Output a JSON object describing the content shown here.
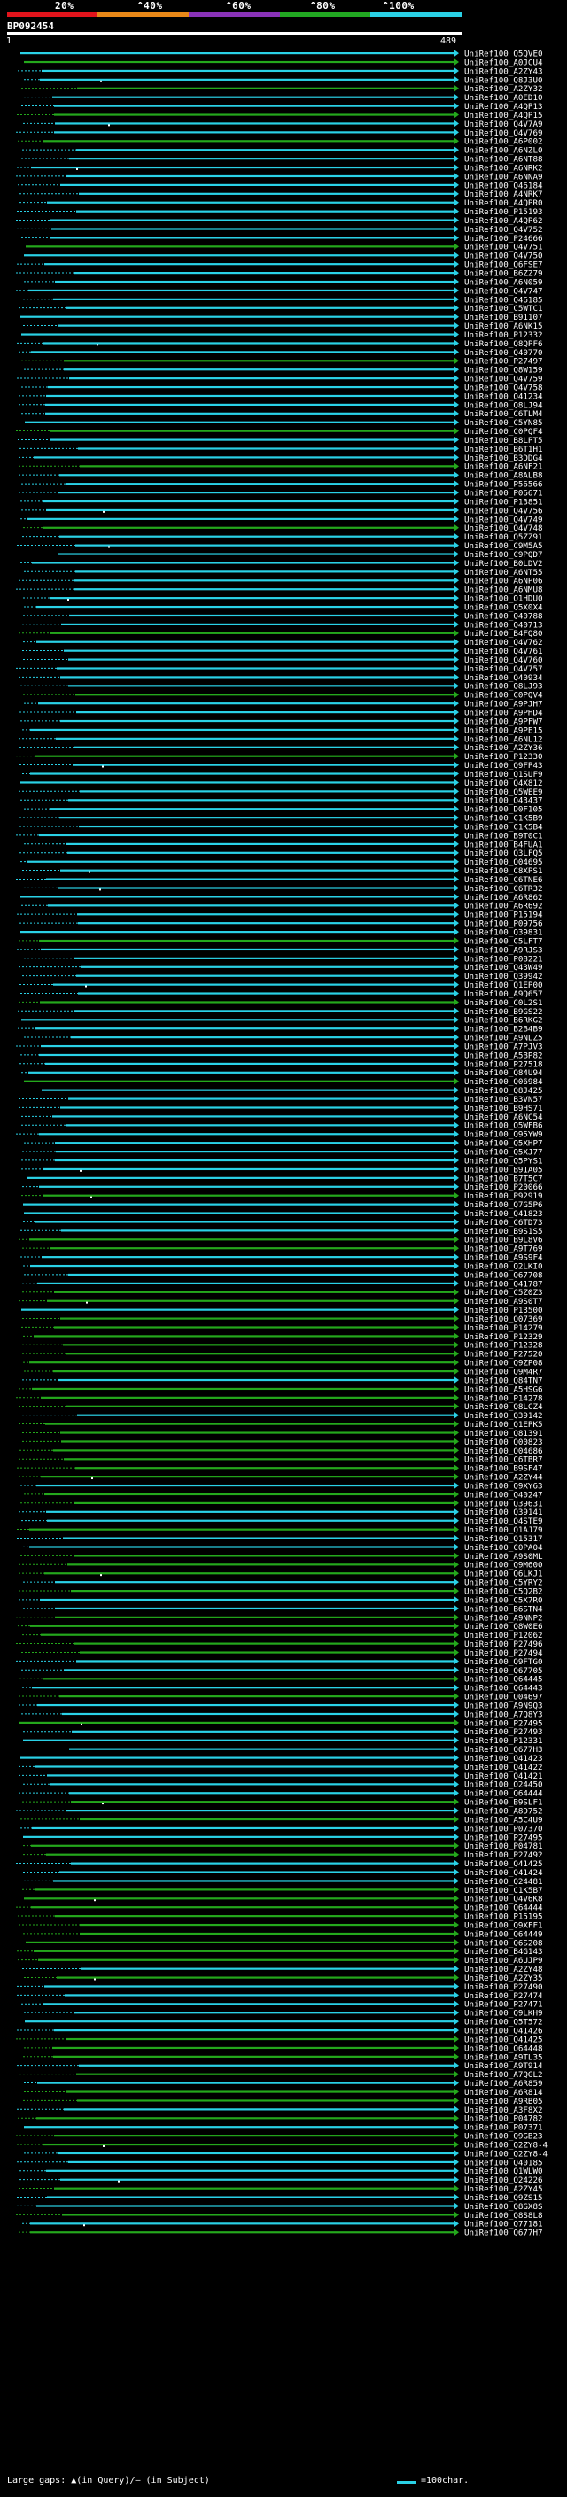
{
  "scale": {
    "labels": [
      "20%",
      "^40%",
      "^60%",
      "^80%",
      "^100%"
    ],
    "colors": [
      "#e2141c",
      "#e88818",
      "#8a33b8",
      "#22a822",
      "#2ad1e6"
    ]
  },
  "query": {
    "id": "BP092454",
    "start": "1",
    "end": "489"
  },
  "footer": {
    "gaps": "Large gaps: ▲(in Query)/– (in Subject)",
    "key": "=100char."
  },
  "colors": {
    "cyan": "#2ad1e6",
    "green": "#24a81c",
    "lime": "#7bd316",
    "white": "#ffffff"
  },
  "hits": [
    "UniRef100_Q5QVE0",
    "UniRef100_A0JCU4",
    "UniRef100_A2ZY43",
    "UniRef100_Q8J3U0",
    "UniRef100_A2ZY32",
    "UniRef100_A0ED10",
    "UniRef100_A4QP13",
    "UniRef100_A4QP15",
    "UniRef100_Q4V7A9",
    "UniRef100_Q4V769",
    "UniRef100_A6P002",
    "UniRef100_A6NZL0",
    "UniRef100_A6NT88",
    "UniRef100_A6NRK2",
    "UniRef100_A6NNA9",
    "UniRef100_Q46184",
    "UniRef100_A4NRK7",
    "UniRef100_A4QPR0",
    "UniRef100_P15193",
    "UniRef100_A4QP62",
    "UniRef100_Q4V752",
    "UniRef100_P24666",
    "UniRef100_Q4V751",
    "UniRef100_Q4V750",
    "UniRef100_Q6FSE7",
    "UniRef100_B6ZZ79",
    "UniRef100_A6N059",
    "UniRef100_Q4V747",
    "UniRef100_Q46185",
    "UniRef100_C5WTC1",
    "UniRef100_B91107",
    "UniRef100_A6NK15",
    "UniRef100_P12332",
    "UniRef100_Q8QPF6",
    "UniRef100_Q40770",
    "UniRef100_P27497",
    "UniRef100_Q8W159",
    "UniRef100_Q4V759",
    "UniRef100_Q4V758",
    "UniRef100_Q41234",
    "UniRef100_Q8LJ94",
    "UniRef100_C6TLM4",
    "UniRef100_C5YN85",
    "UniRef100_C0PQF4",
    "UniRef100_B8LPT5",
    "UniRef100_B6T1H1",
    "UniRef100_B3DDG4",
    "UniRef100_A6NF21",
    "UniRef100_A8ALB8",
    "UniRef100_P56566",
    "UniRef100_P06671",
    "UniRef100_P13851",
    "UniRef100_Q4V756",
    "UniRef100_Q4V749",
    "UniRef100_Q4V748",
    "UniRef100_Q5ZZ91",
    "UniRef100_C9M5A5",
    "UniRef100_C9PQD7",
    "UniRef100_B0LDV2",
    "UniRef100_A6NT55",
    "UniRef100_A6NP06",
    "UniRef100_A6NMU8",
    "UniRef100_Q1HDU0",
    "UniRef100_Q5X0X4",
    "UniRef100_Q40788",
    "UniRef100_Q40713",
    "UniRef100_B4FQ80",
    "UniRef100_Q4V762",
    "UniRef100_Q4V761",
    "UniRef100_Q4V760",
    "UniRef100_Q4V757",
    "UniRef100_Q40934",
    "UniRef100_Q8LJ93",
    "UniRef100_C0PQV4",
    "UniRef100_A9PJH7",
    "UniRef100_A9PHD4",
    "UniRef100_A9PFW7",
    "UniRef100_A9PE15",
    "UniRef100_A6NL12",
    "UniRef100_A2ZY36",
    "UniRef100_P12330",
    "UniRef100_Q9FP43",
    "UniRef100_Q1SUF9",
    "UniRef100_Q4X812",
    "UniRef100_Q5WEE9",
    "UniRef100_Q43437",
    "UniRef100_D0F105",
    "UniRef100_C1K5B9",
    "UniRef100_C1K5B4",
    "UniRef100_B9T0C1",
    "UniRef100_B4FUA1",
    "UniRef100_Q3LFQ5",
    "UniRef100_Q04695",
    "UniRef100_C8XPS1",
    "UniRef100_C6TNE6",
    "UniRef100_C6TR32",
    "UniRef100_A6R862",
    "UniRef100_A6R692",
    "UniRef100_P15194",
    "UniRef100_P09756",
    "UniRef100_Q39831",
    "UniRef100_C5LFT7",
    "UniRef100_A9RJS3",
    "UniRef100_P08221",
    "UniRef100_Q43W49",
    "UniRef100_Q39942",
    "UniRef100_Q1EP00",
    "UniRef100_A9Q657",
    "UniRef100_C0L2S1",
    "UniRef100_B9GS22",
    "UniRef100_B6RKG2",
    "UniRef100_B2B4B9",
    "UniRef100_A9NLZ5",
    "UniRef100_A7PJV3",
    "UniRef100_A5BP82",
    "UniRef100_P27518",
    "UniRef100_Q84U94",
    "UniRef100_Q06984",
    "UniRef100_Q8J425",
    "UniRef100_B3VN57",
    "UniRef100_B9HS71",
    "UniRef100_A6NC54",
    "UniRef100_Q5WFB6",
    "UniRef100_Q95YW9",
    "UniRef100_Q5XHP7",
    "UniRef100_Q5XJ77",
    "UniRef100_Q5PYS1",
    "UniRef100_B91A05",
    "UniRef100_B7T5C7",
    "UniRef100_P20066",
    "UniRef100_P92919",
    "UniRef100_Q7G5P6",
    "UniRef100_Q41823",
    "UniRef100_C6TD73",
    "UniRef100_B9S1S5",
    "UniRef100_B9L8V6",
    "UniRef100_A9T769",
    "UniRef100_A9S9F4",
    "UniRef100_Q2LKI0",
    "UniRef100_Q67708",
    "UniRef100_Q41787",
    "UniRef100_C5Z0Z3",
    "UniRef100_A9S0T7",
    "UniRef100_P13500",
    "UniRef100_Q07369",
    "UniRef100_P14279",
    "UniRef100_P12329",
    "UniRef100_P12328",
    "UniRef100_P27520",
    "UniRef100_Q9ZP08",
    "UniRef100_Q9M4R7",
    "UniRef100_Q84TN7",
    "UniRef100_A5HSG6",
    "UniRef100_P14278",
    "UniRef100_Q8LCZ4",
    "UniRef100_Q39142",
    "UniRef100_Q1EPK5",
    "UniRef100_Q81391",
    "UniRef100_Q00823",
    "UniRef100_O04686",
    "UniRef100_C6TBR7",
    "UniRef100_B9SF47",
    "UniRef100_A2ZY44",
    "UniRef100_Q9XY63",
    "UniRef100_Q40247",
    "UniRef100_Q39631",
    "UniRef100_Q39141",
    "UniRef100_Q4STE9",
    "UniRef100_Q1AJ79",
    "UniRef100_Q15317",
    "UniRef100_C0PA04",
    "UniRef100_A9S0ML",
    "UniRef100_Q9M600",
    "UniRef100_Q6LKJ1",
    "UniRef100_C5YRY2",
    "UniRef100_C5Q2B2",
    "UniRef100_C5X7R0",
    "UniRef100_B6STN4",
    "UniRef100_A9NNP2",
    "UniRef100_Q8W0E6",
    "UniRef100_P12062",
    "UniRef100_P27496",
    "UniRef100_P27494",
    "UniRef100_Q9FTG0",
    "UniRef100_Q67705",
    "UniRef100_Q64445",
    "UniRef100_Q64443",
    "UniRef100_O04697",
    "UniRef100_A9N9Q3",
    "UniRef100_A7Q8Y3",
    "UniRef100_P27495",
    "UniRef100_P27493",
    "UniRef100_P12331",
    "UniRef100_Q677H3",
    "UniRef100_Q41423",
    "UniRef100_Q41422",
    "UniRef100_Q41421",
    "UniRef100_O24450",
    "UniRef100_Q64444",
    "UniRef100_B9SLF1",
    "UniRef100_A8D752",
    "UniRef100_A5C4U9",
    "UniRef100_P07370",
    "UniRef100_P27495",
    "UniRef100_P04781",
    "UniRef100_P27492",
    "UniRef100_Q41425",
    "UniRef100_Q41424",
    "UniRef100_Q24481",
    "UniRef100_C1K5B7",
    "UniRef100_Q4V6K8",
    "UniRef100_Q64444",
    "UniRef100_P15195",
    "UniRef100_Q9XFF1",
    "UniRef100_Q64449",
    "UniRef100_Q6S208",
    "UniRef100_B4G143",
    "UniRef100_A6UJP9",
    "UniRef100_A2ZY48",
    "UniRef100_A2ZY35",
    "UniRef100_P27490",
    "UniRef100_P27474",
    "UniRef100_P27471",
    "UniRef100_Q9LKH9",
    "UniRef100_Q5T572",
    "UniRef100_Q41426",
    "UniRef100_Q41425",
    "UniRef100_Q64448",
    "UniRef100_A9TL35",
    "UniRef100_A9T914",
    "UniRef100_A7QGL2",
    "UniRef100_A6R859",
    "UniRef100_A6R814",
    "UniRef100_A9RB05",
    "UniRef100_A3F8X2",
    "UniRef100_P04782",
    "UniRef100_P07371",
    "UniRef100_Q9GB23",
    "UniRef100_Q2ZY8-4",
    "UniRef100_Q2ZY8-4",
    "UniRef100_Q40185",
    "UniRef100_Q1WLW0",
    "UniRef100_O24226",
    "UniRef100_A2ZY45",
    "UniRef100_Q9ZS15",
    "UniRef100_Q8GX8S",
    "UniRef100_Q8S8L8",
    "UniRef100_Q77181",
    "UniRef100_Q677H7"
  ]
}
